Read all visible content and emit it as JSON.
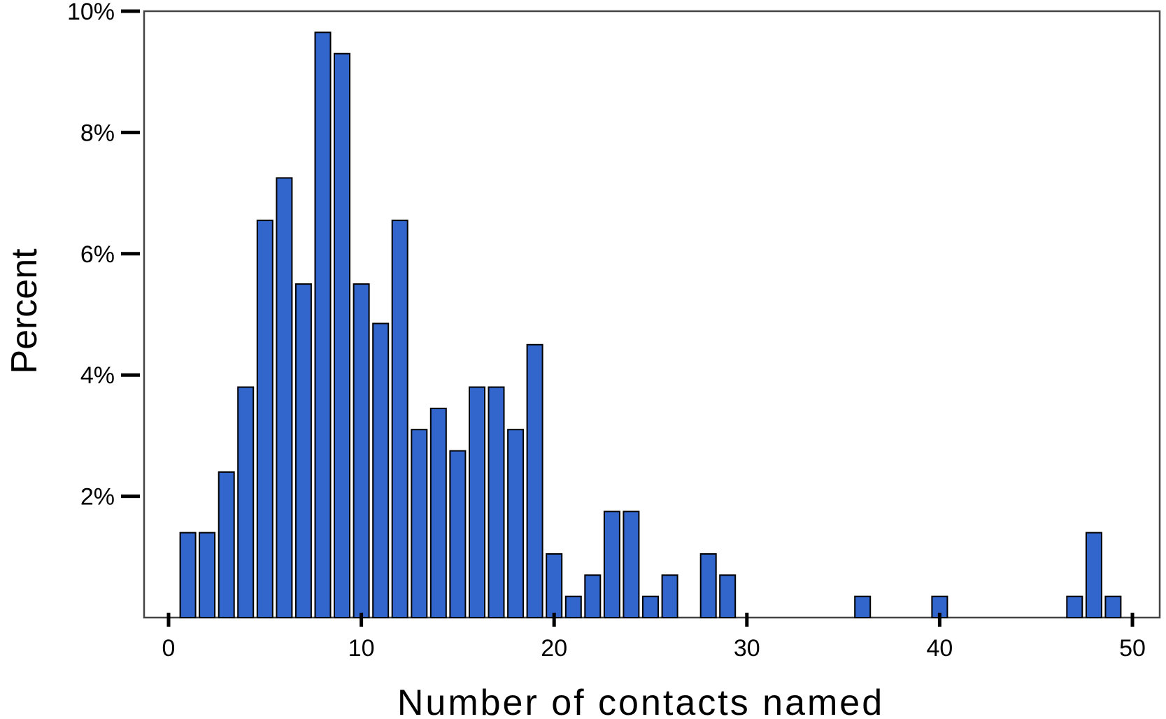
{
  "chart_data": {
    "type": "bar",
    "title": "",
    "xlabel": "Number of contacts named",
    "ylabel": "Percent",
    "xlim": [
      0,
      50
    ],
    "ylim": [
      0,
      10
    ],
    "x_ticks": [
      "0",
      "10",
      "20",
      "30",
      "40",
      "50"
    ],
    "y_ticks": [
      "2%",
      "4%",
      "6%",
      "8%",
      "10%"
    ],
    "grid": false,
    "legend": "none",
    "bar_color": "#3366CC",
    "x": [
      1,
      2,
      3,
      4,
      5,
      6,
      7,
      8,
      9,
      10,
      11,
      12,
      13,
      14,
      15,
      16,
      17,
      18,
      19,
      20,
      21,
      22,
      23,
      24,
      25,
      26,
      28,
      29,
      36,
      40,
      47,
      48,
      49
    ],
    "values": [
      1.4,
      1.4,
      2.4,
      3.8,
      6.55,
      7.25,
      5.5,
      9.65,
      9.3,
      5.5,
      4.85,
      6.55,
      3.1,
      3.45,
      2.75,
      3.8,
      3.8,
      3.1,
      4.5,
      1.05,
      0.35,
      0.7,
      1.75,
      1.75,
      0.35,
      0.7,
      1.05,
      0.7,
      0.35,
      0.35,
      0.35,
      1.4,
      0.35
    ]
  }
}
